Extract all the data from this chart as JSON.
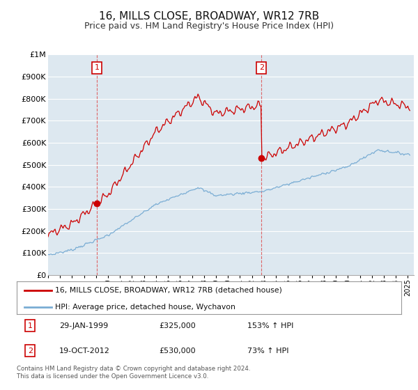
{
  "title": "16, MILLS CLOSE, BROADWAY, WR12 7RB",
  "subtitle": "Price paid vs. HM Land Registry's House Price Index (HPI)",
  "title_fontsize": 11,
  "subtitle_fontsize": 9,
  "ylim": [
    0,
    1000000
  ],
  "xlim_start": 1995.0,
  "xlim_end": 2025.5,
  "red_label": "16, MILLS CLOSE, BROADWAY, WR12 7RB (detached house)",
  "blue_label": "HPI: Average price, detached house, Wychavon",
  "sale1_date": "29-JAN-1999",
  "sale1_price": 325000,
  "sale1_pct": "153% ↑ HPI",
  "sale1_year": 1999.08,
  "sale2_date": "19-OCT-2012",
  "sale2_price": 530000,
  "sale2_pct": "73% ↑ HPI",
  "sale2_year": 2012.8,
  "footnote": "Contains HM Land Registry data © Crown copyright and database right 2024.\nThis data is licensed under the Open Government Licence v3.0.",
  "background_color": "#ffffff",
  "plot_bg_color": "#dde8f0",
  "grid_color": "#ffffff",
  "red_color": "#cc0000",
  "blue_color": "#7aadd4",
  "vline_color": "#dd4444"
}
